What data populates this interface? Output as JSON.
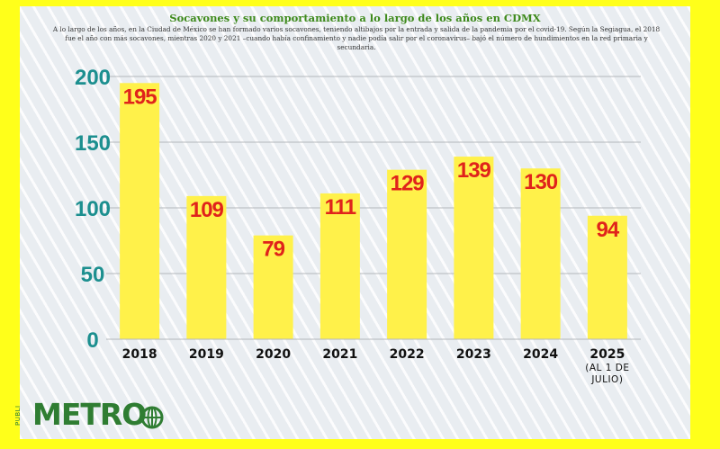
{
  "header": {
    "title": "Socavones y su comportamiento a lo largo de los años en CDMX",
    "subtitle": "A lo largo de los años, en la Ciudad de México se han formado varios socavones, teniendo altibajos por la entrada y salida de la pandemia por el covid-19. Según la Segiagua, el 2018 fue el año con más socavones, mientras 2020 y 2021 –cuando había confinamiento y nadie podía salir por el coronavirus– bajó el número de hundimientos en la red primaria y secundaria."
  },
  "chart_data": {
    "type": "bar",
    "categories": [
      "2018",
      "2019",
      "2020",
      "2021",
      "2022",
      "2023",
      "2024",
      "2025"
    ],
    "category_note": {
      "2025": [
        "(AL 1 DE",
        "JULIO)"
      ]
    },
    "values": [
      195,
      109,
      79,
      111,
      129,
      139,
      130,
      94
    ],
    "value_labels": [
      "195",
      "109",
      "79",
      "111",
      "129",
      "139",
      "130",
      "94"
    ],
    "y_ticks": [
      "0",
      "50",
      "100",
      "150",
      "200"
    ],
    "ylim": [
      0,
      200
    ],
    "grid": true,
    "colors": {
      "bar": "#fff14a",
      "data_label": "#e0231b",
      "y_tick": "#1c8f8f",
      "grid": "#b4b8bc"
    }
  },
  "brand": {
    "logo_word": "METRO",
    "logo_small": "PUBLI",
    "logo_color": "#2f7d32",
    "icon": "globe-icon"
  }
}
